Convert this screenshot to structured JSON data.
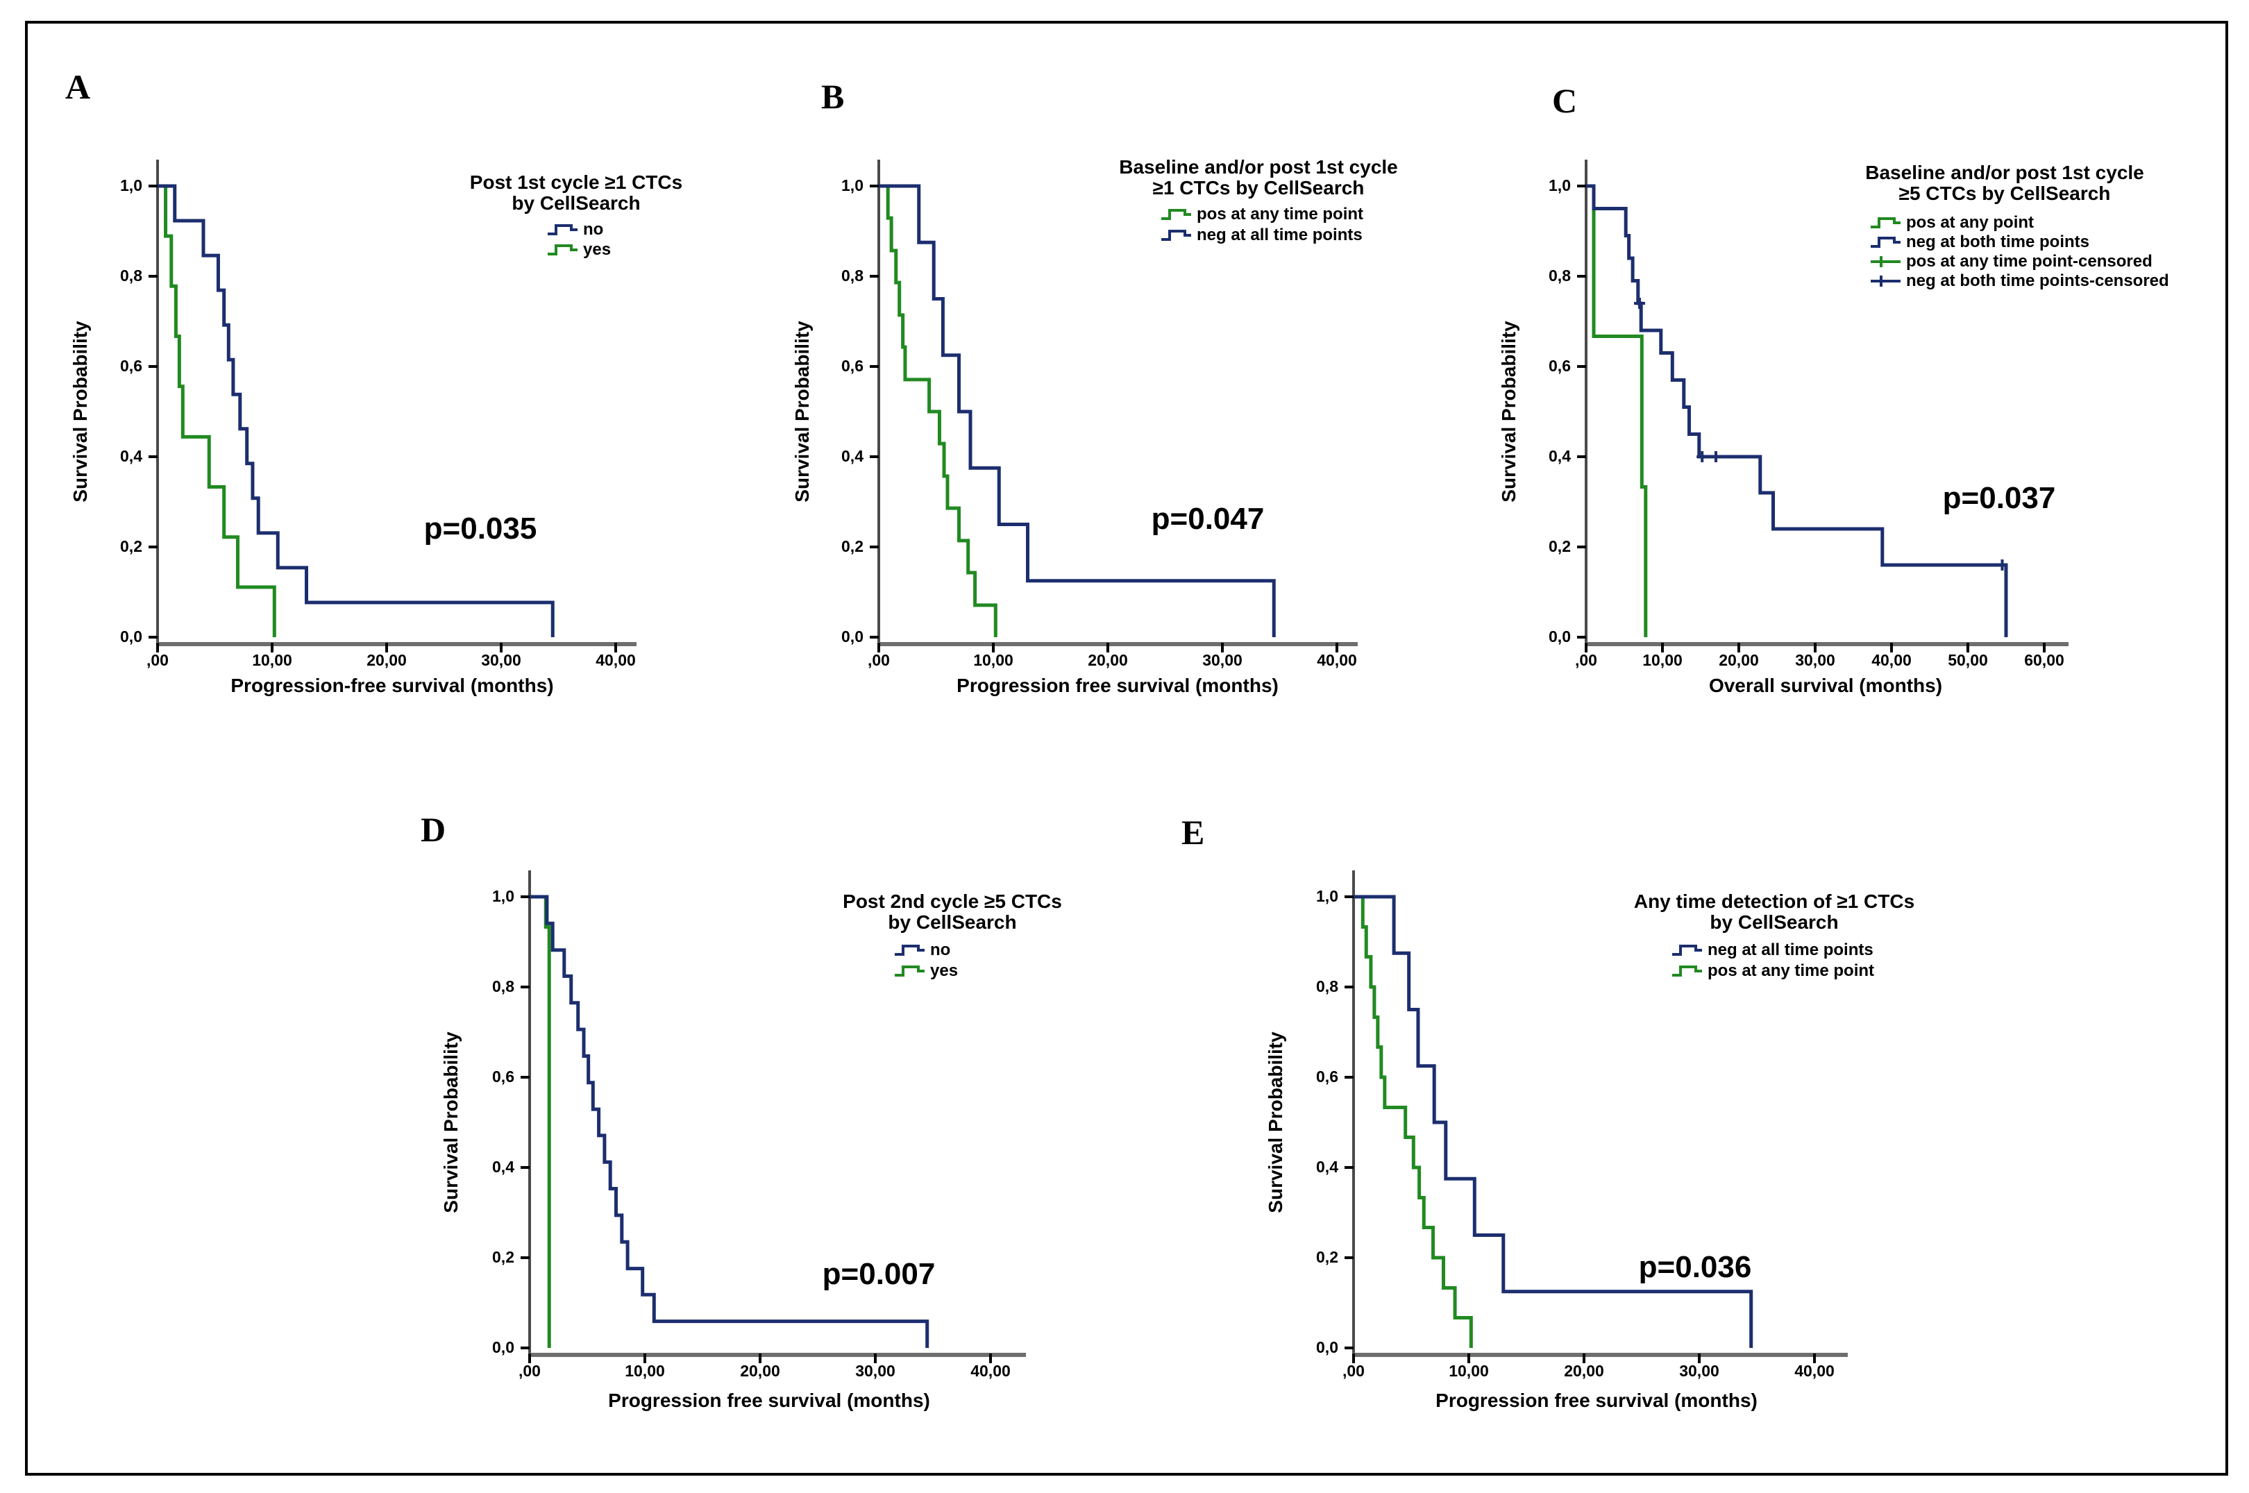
{
  "figure": {
    "background": "#ffffff",
    "border_color": "#000000"
  },
  "colors": {
    "navy": "#1c2e6e",
    "green": "#218a21",
    "axis_line": "#6e6e6e",
    "y_axis_line": "#4a4a4a",
    "tick": "#000000",
    "text": "#000000"
  },
  "chart_data": [
    {
      "id": "A",
      "type": "line",
      "subtype": "kaplan-meier-step",
      "panel_letter": "A",
      "title_lines": [
        "Post 1st cycle ≥1 CTCs",
        "by CellSearch"
      ],
      "p_value": "p=0.035",
      "xlabel": "Progression-free survival (months)",
      "ylabel": "Survival Probability",
      "xlim": [
        0,
        42
      ],
      "ylim": [
        0,
        1.0
      ],
      "grid": false,
      "legend_position": "top-right",
      "x_ticks": [
        {
          "label": ",00",
          "value": 0
        },
        {
          "label": "10,00",
          "value": 10
        },
        {
          "label": "20,00",
          "value": 20
        },
        {
          "label": "30,00",
          "value": 30
        },
        {
          "label": "40,00",
          "value": 40
        }
      ],
      "y_ticks": [
        {
          "label": "0,0",
          "value": 0.0
        },
        {
          "label": "0,2",
          "value": 0.2
        },
        {
          "label": "0,4",
          "value": 0.4
        },
        {
          "label": "0,6",
          "value": 0.6
        },
        {
          "label": "0,8",
          "value": 0.8
        },
        {
          "label": "1,0",
          "value": 1.0
        }
      ],
      "legend": [
        {
          "label": "no",
          "color": "navy",
          "marker": "step"
        },
        {
          "label": "yes",
          "color": "green",
          "marker": "step"
        }
      ],
      "series": [
        {
          "name": "yes",
          "color": "green",
          "start": 1.0,
          "drops": [
            [
              0.7,
              0.889
            ],
            [
              1.2,
              0.778
            ],
            [
              1.6,
              0.667
            ],
            [
              1.9,
              0.556
            ],
            [
              2.2,
              0.444
            ],
            [
              4.5,
              0.333
            ],
            [
              5.8,
              0.222
            ],
            [
              7.0,
              0.111
            ],
            [
              10.2,
              0.0
            ]
          ]
        },
        {
          "name": "no",
          "color": "navy",
          "start": 1.0,
          "drops": [
            [
              1.5,
              0.923
            ],
            [
              4.0,
              0.846
            ],
            [
              5.3,
              0.769
            ],
            [
              5.8,
              0.692
            ],
            [
              6.2,
              0.615
            ],
            [
              6.6,
              0.538
            ],
            [
              7.2,
              0.462
            ],
            [
              7.8,
              0.385
            ],
            [
              8.3,
              0.308
            ],
            [
              8.8,
              0.231
            ],
            [
              10.5,
              0.154
            ],
            [
              13.0,
              0.077
            ],
            [
              34.5,
              0.0
            ]
          ]
        }
      ],
      "censor_marks": []
    },
    {
      "id": "B",
      "type": "line",
      "subtype": "kaplan-meier-step",
      "panel_letter": "B",
      "title_lines": [
        "Baseline and/or post 1st cycle",
        "≥1 CTCs by CellSearch"
      ],
      "p_value": "p=0.047",
      "xlabel": "Progression free survival (months)",
      "ylabel": "Survival Probability",
      "xlim": [
        0,
        42
      ],
      "ylim": [
        0,
        1.0
      ],
      "grid": false,
      "legend_position": "top-right",
      "x_ticks": [
        {
          "label": ",00",
          "value": 0
        },
        {
          "label": "10,00",
          "value": 10
        },
        {
          "label": "20,00",
          "value": 20
        },
        {
          "label": "30,00",
          "value": 30
        },
        {
          "label": "40,00",
          "value": 40
        }
      ],
      "y_ticks": [
        {
          "label": "0,0",
          "value": 0.0
        },
        {
          "label": "0,2",
          "value": 0.2
        },
        {
          "label": "0,4",
          "value": 0.4
        },
        {
          "label": "0,6",
          "value": 0.6
        },
        {
          "label": "0,8",
          "value": 0.8
        },
        {
          "label": "1,0",
          "value": 1.0
        }
      ],
      "legend": [
        {
          "label": "pos at any time point",
          "color": "green",
          "marker": "step"
        },
        {
          "label": "neg at all time points",
          "color": "navy",
          "marker": "step"
        }
      ],
      "series": [
        {
          "name": "pos at any time point",
          "color": "green",
          "start": 1.0,
          "drops": [
            [
              0.8,
              0.929
            ],
            [
              1.1,
              0.857
            ],
            [
              1.5,
              0.786
            ],
            [
              1.8,
              0.714
            ],
            [
              2.1,
              0.643
            ],
            [
              2.3,
              0.571
            ],
            [
              4.4,
              0.5
            ],
            [
              5.3,
              0.429
            ],
            [
              5.7,
              0.357
            ],
            [
              6.0,
              0.286
            ],
            [
              7.0,
              0.214
            ],
            [
              7.8,
              0.143
            ],
            [
              8.4,
              0.071
            ],
            [
              10.2,
              0.0
            ]
          ]
        },
        {
          "name": "neg at all time points",
          "color": "navy",
          "start": 1.0,
          "drops": [
            [
              3.5,
              0.875
            ],
            [
              4.8,
              0.75
            ],
            [
              5.6,
              0.625
            ],
            [
              7.0,
              0.5
            ],
            [
              8.0,
              0.375
            ],
            [
              10.5,
              0.25
            ],
            [
              13.0,
              0.125
            ],
            [
              34.5,
              0.0
            ]
          ]
        }
      ],
      "censor_marks": []
    },
    {
      "id": "C",
      "type": "line",
      "subtype": "kaplan-meier-step",
      "panel_letter": "C",
      "title_lines": [
        "Baseline and/or post 1st cycle",
        "≥5 CTCs by CellSearch"
      ],
      "p_value": "p=0.037",
      "xlabel": "Overall survival (months)",
      "ylabel": "Survival Probability",
      "xlim": [
        0,
        63
      ],
      "ylim": [
        0,
        1.0
      ],
      "grid": false,
      "legend_position": "top-right",
      "x_ticks": [
        {
          "label": ",00",
          "value": 0
        },
        {
          "label": "10,00",
          "value": 10
        },
        {
          "label": "20,00",
          "value": 20
        },
        {
          "label": "30,00",
          "value": 30
        },
        {
          "label": "40,00",
          "value": 40
        },
        {
          "label": "50,00",
          "value": 50
        },
        {
          "label": "60,00",
          "value": 60
        }
      ],
      "y_ticks": [
        {
          "label": "0,0",
          "value": 0.0
        },
        {
          "label": "0,2",
          "value": 0.2
        },
        {
          "label": "0,4",
          "value": 0.4
        },
        {
          "label": "0,6",
          "value": 0.6
        },
        {
          "label": "0,8",
          "value": 0.8
        },
        {
          "label": "1,0",
          "value": 1.0
        }
      ],
      "legend": [
        {
          "label": "pos at any point",
          "color": "green",
          "marker": "step"
        },
        {
          "label": "neg at both time points",
          "color": "navy",
          "marker": "step"
        },
        {
          "label": "pos at any time point-censored",
          "color": "green",
          "marker": "censor"
        },
        {
          "label": "neg at both time points-censored",
          "color": "navy",
          "marker": "censor"
        }
      ],
      "series": [
        {
          "name": "pos at any point",
          "color": "green",
          "start": 1.0,
          "drops": [
            [
              1.0,
              0.667
            ],
            [
              7.3,
              0.333
            ],
            [
              7.8,
              0.0
            ]
          ]
        },
        {
          "name": "neg at both time points",
          "color": "navy",
          "start": 1.0,
          "drops": [
            [
              1.0,
              0.95
            ],
            [
              5.2,
              0.89
            ],
            [
              5.6,
              0.84
            ],
            [
              6.1,
              0.79
            ],
            [
              6.8,
              0.74
            ],
            [
              7.2,
              0.68
            ],
            [
              9.8,
              0.63
            ],
            [
              11.3,
              0.57
            ],
            [
              12.8,
              0.51
            ],
            [
              13.5,
              0.45
            ],
            [
              14.8,
              0.4
            ],
            [
              22.8,
              0.32
            ],
            [
              24.5,
              0.24
            ],
            [
              38.8,
              0.16
            ],
            [
              55.0,
              0.0
            ]
          ]
        }
      ],
      "censor_marks": [
        {
          "series": "neg at both time points",
          "color": "navy",
          "points": [
            [
              7.0,
              0.74
            ],
            [
              15.2,
              0.4
            ],
            [
              17.0,
              0.4
            ],
            [
              54.5,
              0.16
            ]
          ]
        }
      ]
    },
    {
      "id": "D",
      "type": "line",
      "subtype": "kaplan-meier-step",
      "panel_letter": "D",
      "title_lines": [
        "Post 2nd cycle ≥5 CTCs",
        "by CellSearch"
      ],
      "p_value": "p=0.007",
      "xlabel": "Progression free survival (months)",
      "ylabel": "Survival Probability",
      "xlim": [
        0,
        42
      ],
      "ylim": [
        0,
        1.0
      ],
      "grid": false,
      "legend_position": "top-right",
      "x_ticks": [
        {
          "label": ",00",
          "value": 0
        },
        {
          "label": "10,00",
          "value": 10
        },
        {
          "label": "20,00",
          "value": 20
        },
        {
          "label": "30,00",
          "value": 30
        },
        {
          "label": "40,00",
          "value": 40
        }
      ],
      "y_ticks": [
        {
          "label": "0,0",
          "value": 0.0
        },
        {
          "label": "0,2",
          "value": 0.2
        },
        {
          "label": "0,4",
          "value": 0.4
        },
        {
          "label": "0,6",
          "value": 0.6
        },
        {
          "label": "0,8",
          "value": 0.8
        },
        {
          "label": "1,0",
          "value": 1.0
        }
      ],
      "legend": [
        {
          "label": "no",
          "color": "navy",
          "marker": "step"
        },
        {
          "label": "yes",
          "color": "green",
          "marker": "step"
        }
      ],
      "series": [
        {
          "name": "yes",
          "color": "green",
          "start": 1.0,
          "drops": [
            [
              1.4,
              0.933
            ],
            [
              1.7,
              0.0
            ]
          ]
        },
        {
          "name": "no",
          "color": "navy",
          "start": 1.0,
          "drops": [
            [
              1.5,
              0.941
            ],
            [
              2.0,
              0.882
            ],
            [
              3.0,
              0.824
            ],
            [
              3.6,
              0.765
            ],
            [
              4.2,
              0.706
            ],
            [
              4.7,
              0.647
            ],
            [
              5.1,
              0.588
            ],
            [
              5.5,
              0.529
            ],
            [
              6.0,
              0.471
            ],
            [
              6.5,
              0.412
            ],
            [
              7.0,
              0.353
            ],
            [
              7.5,
              0.294
            ],
            [
              8.0,
              0.235
            ],
            [
              8.5,
              0.176
            ],
            [
              9.8,
              0.118
            ],
            [
              10.8,
              0.059
            ],
            [
              34.5,
              0.0
            ]
          ]
        }
      ],
      "censor_marks": []
    },
    {
      "id": "E",
      "type": "line",
      "subtype": "kaplan-meier-step",
      "panel_letter": "E",
      "title_lines": [
        "Any time detection of ≥1 CTCs",
        "by CellSearch"
      ],
      "p_value": "p=0.036",
      "xlabel": "Progression free survival (months)",
      "ylabel": "Survival Probability",
      "xlim": [
        0,
        42
      ],
      "ylim": [
        0,
        1.0
      ],
      "grid": false,
      "legend_position": "top-right",
      "x_ticks": [
        {
          "label": ",00",
          "value": 0
        },
        {
          "label": "10,00",
          "value": 10
        },
        {
          "label": "20,00",
          "value": 20
        },
        {
          "label": "30,00",
          "value": 30
        },
        {
          "label": "40,00",
          "value": 40
        }
      ],
      "y_ticks": [
        {
          "label": "0,0",
          "value": 0.0
        },
        {
          "label": "0,2",
          "value": 0.2
        },
        {
          "label": "0,4",
          "value": 0.4
        },
        {
          "label": "0,6",
          "value": 0.6
        },
        {
          "label": "0,8",
          "value": 0.8
        },
        {
          "label": "1,0",
          "value": 1.0
        }
      ],
      "legend": [
        {
          "label": "neg at all time points",
          "color": "navy",
          "marker": "step"
        },
        {
          "label": "pos at any time point",
          "color": "green",
          "marker": "step"
        }
      ],
      "series": [
        {
          "name": "pos at any time point",
          "color": "green",
          "start": 1.0,
          "drops": [
            [
              0.8,
              0.933
            ],
            [
              1.1,
              0.867
            ],
            [
              1.5,
              0.8
            ],
            [
              1.8,
              0.733
            ],
            [
              2.1,
              0.667
            ],
            [
              2.4,
              0.6
            ],
            [
              2.7,
              0.533
            ],
            [
              4.5,
              0.467
            ],
            [
              5.2,
              0.4
            ],
            [
              5.7,
              0.333
            ],
            [
              6.1,
              0.267
            ],
            [
              6.9,
              0.2
            ],
            [
              7.8,
              0.133
            ],
            [
              8.8,
              0.067
            ],
            [
              10.2,
              0.0
            ]
          ]
        },
        {
          "name": "neg at all time points",
          "color": "navy",
          "start": 1.0,
          "drops": [
            [
              3.5,
              0.875
            ],
            [
              4.8,
              0.75
            ],
            [
              5.6,
              0.625
            ],
            [
              7.0,
              0.5
            ],
            [
              8.0,
              0.375
            ],
            [
              10.5,
              0.25
            ],
            [
              13.0,
              0.125
            ],
            [
              34.5,
              0.0
            ]
          ]
        }
      ],
      "censor_marks": []
    }
  ]
}
